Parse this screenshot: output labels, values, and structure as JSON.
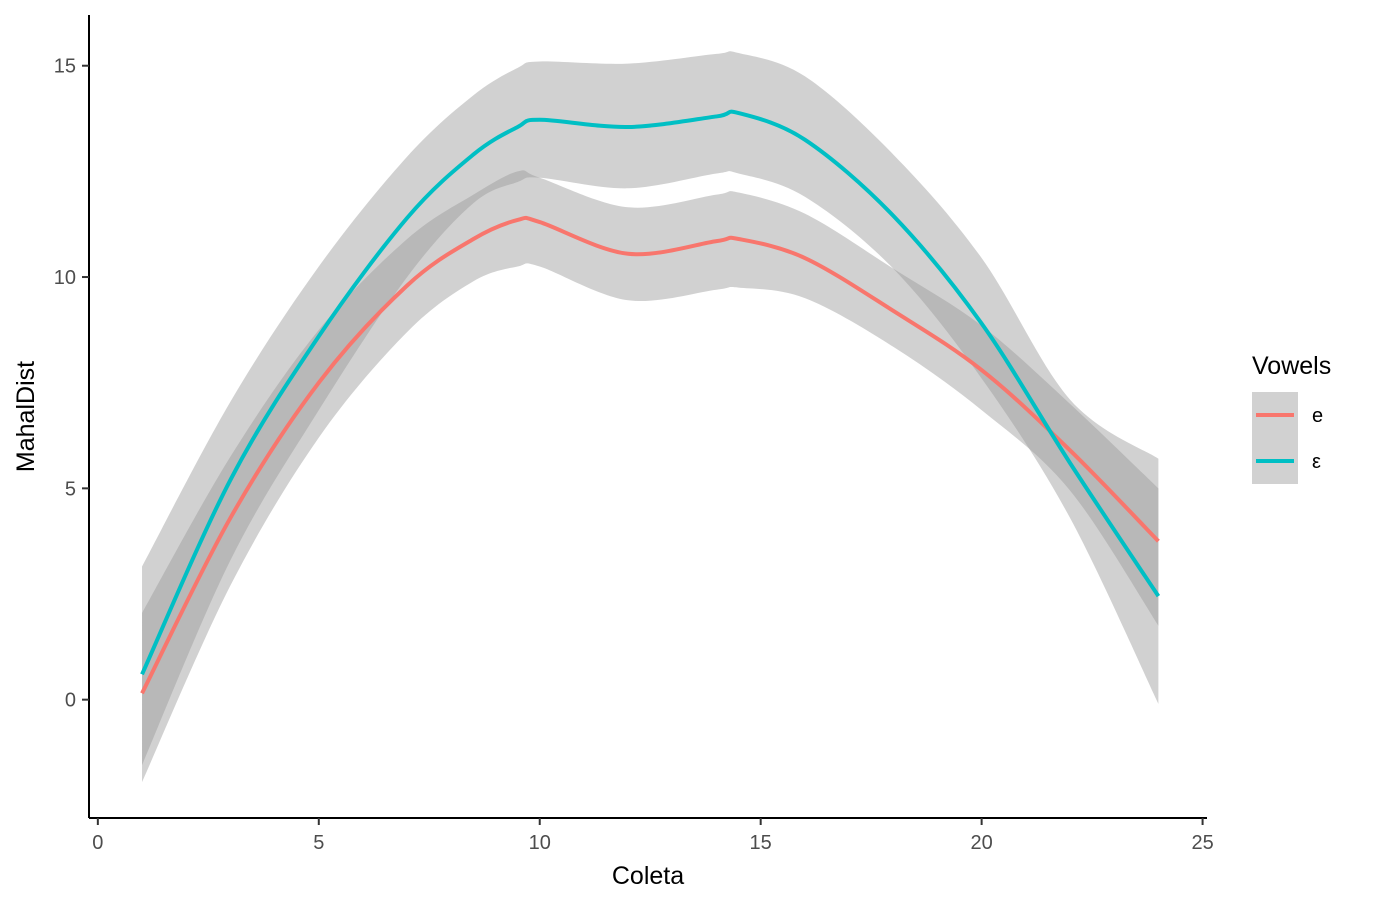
{
  "chart_data": {
    "type": "line",
    "xlabel": "Coleta",
    "ylabel": "MahalDist",
    "xlim": [
      -0.2,
      25.1
    ],
    "ylim": [
      -2.8,
      16.2
    ],
    "x_ticks": [
      0,
      5,
      10,
      15,
      20,
      25
    ],
    "y_ticks": [
      0,
      5,
      10,
      15
    ],
    "grid": false,
    "legend": {
      "title": "Vowels",
      "position": "right"
    },
    "x": [
      1,
      3,
      5,
      7,
      8.5,
      9.5,
      10,
      12,
      14,
      14.5,
      16,
      18,
      20,
      22,
      24
    ],
    "series": [
      {
        "name": "e",
        "color": "#F8766D",
        "values": [
          0.15,
          4.3,
          7.5,
          9.8,
          10.9,
          11.35,
          11.3,
          10.55,
          10.85,
          10.9,
          10.45,
          9.2,
          7.8,
          5.9,
          3.75
        ],
        "ci_lower": [
          -1.95,
          2.7,
          6.2,
          8.7,
          9.9,
          10.25,
          10.25,
          9.45,
          9.7,
          9.75,
          9.5,
          8.35,
          6.85,
          4.95,
          1.75
        ],
        "ci_upper": [
          2.05,
          5.75,
          8.75,
          10.9,
          11.95,
          12.5,
          12.35,
          11.65,
          11.95,
          12.0,
          11.5,
          10.2,
          8.85,
          7.0,
          5.0
        ]
      },
      {
        "name": "ε",
        "color": "#00BFC4",
        "values": [
          0.6,
          5.2,
          8.6,
          11.4,
          12.9,
          13.55,
          13.72,
          13.55,
          13.8,
          13.88,
          13.25,
          11.45,
          8.9,
          5.6,
          2.45
        ],
        "ci_lower": [
          -1.55,
          3.3,
          6.85,
          10.0,
          11.75,
          12.25,
          12.35,
          12.1,
          12.45,
          12.45,
          11.9,
          10.2,
          7.6,
          4.3,
          -0.1
        ],
        "ci_upper": [
          3.15,
          7.05,
          10.25,
          12.85,
          14.3,
          14.95,
          15.1,
          15.05,
          15.28,
          15.3,
          14.75,
          12.9,
          10.45,
          7.1,
          5.7
        ]
      }
    ]
  }
}
